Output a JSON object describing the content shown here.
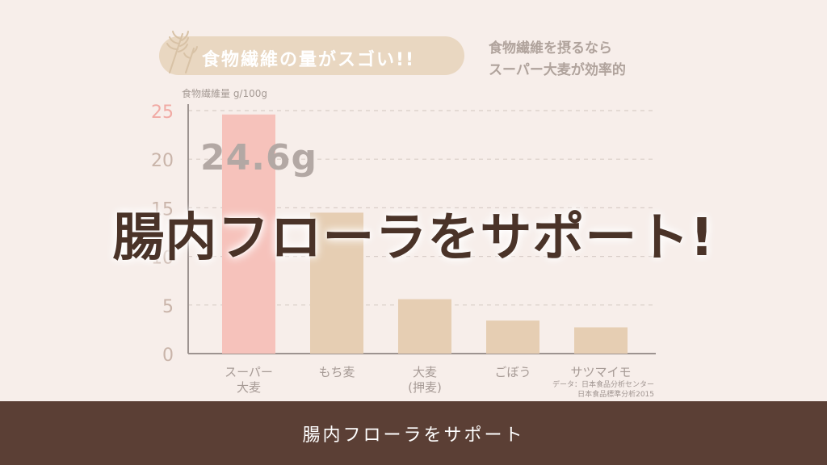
{
  "badge": {
    "title": "食物繊維の量がスゴい!!"
  },
  "side_note": "食物繊維を摂るなら\nスーパー大麦が効率的",
  "unit_label": "食物繊維量 g/100g",
  "highlight_value": "24.6g",
  "headline": "腸内フローラをサポート!",
  "source": "データ：日本食品分析センター\n日本食品標準分析2015",
  "subtitle": "腸内フローラをサポート",
  "colors": {
    "highlight_bar": "#f6c2bb",
    "bar": "#e6ceb3",
    "bottom_bar": "#5b3f35",
    "highlight_tick": "#f1aaa4",
    "tick": "#c9b4a9"
  },
  "chart_data": {
    "type": "bar",
    "categories": [
      "スーパー\n大麦",
      "もち麦",
      "大麦\n(押麦)",
      "ごぼう",
      "サツマイモ"
    ],
    "values": [
      24.6,
      14.5,
      5.6,
      3.4,
      2.7
    ],
    "ylabel": "食物繊維量 g/100g",
    "ylim": [
      0,
      25
    ],
    "yticks": [
      0,
      5,
      10,
      15,
      20,
      25
    ],
    "grid": true,
    "highlight_index": 0
  }
}
